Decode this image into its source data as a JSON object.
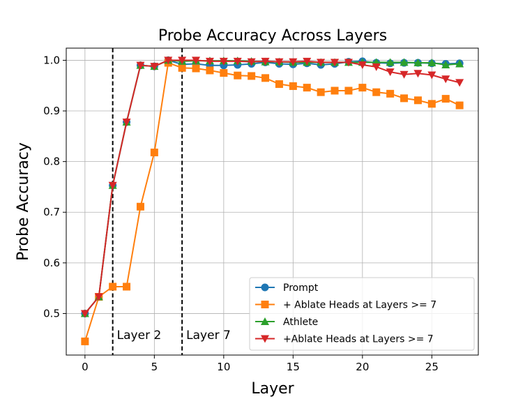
{
  "chart_data": {
    "type": "line",
    "title": "Probe Accuracy Across Layers",
    "xlabel": "Layer",
    "ylabel": "Probe Accuracy",
    "xlim": [
      -1.35,
      28.35
    ],
    "ylim": [
      0.418,
      1.024
    ],
    "xticks": [
      0,
      5,
      10,
      15,
      20,
      25
    ],
    "yticks": [
      0.5,
      0.6,
      0.7,
      0.8,
      0.9,
      1.0
    ],
    "ytick_labels": [
      "0.5",
      "0.6",
      "0.7",
      "0.8",
      "0.9",
      "1.0"
    ],
    "grid": true,
    "legend_position": "lower-right",
    "vlines": [
      {
        "x": 2,
        "label": "Layer 2"
      },
      {
        "x": 7,
        "label": "Layer 7"
      }
    ],
    "x": [
      0,
      1,
      2,
      3,
      4,
      5,
      6,
      7,
      8,
      9,
      10,
      11,
      12,
      13,
      14,
      15,
      16,
      17,
      18,
      19,
      20,
      21,
      22,
      23,
      24,
      25,
      26,
      27
    ],
    "series": [
      {
        "name": "Prompt",
        "color": "#1f77b4",
        "marker": "circle",
        "values": [
          0.5,
          0.533,
          0.753,
          0.878,
          0.99,
          0.988,
          1.0,
          0.992,
          0.993,
          0.99,
          0.99,
          0.991,
          0.993,
          0.996,
          0.993,
          0.992,
          0.994,
          0.991,
          0.993,
          0.997,
          0.998,
          0.995,
          0.994,
          0.995,
          0.995,
          0.994,
          0.993,
          0.994
        ]
      },
      {
        "name": "+ Ablate Heads at Layers >= 7",
        "color": "#ff7f0e",
        "marker": "square",
        "values": [
          0.445,
          0.533,
          0.553,
          0.553,
          0.711,
          0.818,
          0.995,
          0.985,
          0.984,
          0.98,
          0.975,
          0.97,
          0.969,
          0.965,
          0.953,
          0.949,
          0.946,
          0.937,
          0.94,
          0.94,
          0.946,
          0.937,
          0.934,
          0.925,
          0.921,
          0.914,
          0.924,
          0.911
        ]
      },
      {
        "name": "Athlete",
        "color": "#2ca02c",
        "marker": "triangle-up",
        "values": [
          0.5,
          0.533,
          0.753,
          0.878,
          0.99,
          0.988,
          1.0,
          0.998,
          0.999,
          0.999,
          0.999,
          0.999,
          0.998,
          0.997,
          0.997,
          0.996,
          0.996,
          0.996,
          0.996,
          0.996,
          0.996,
          0.996,
          0.996,
          0.996,
          0.995,
          0.995,
          0.991,
          0.993
        ]
      },
      {
        "name": "+Ablate Heads at Layers >= 7",
        "color": "#d62728",
        "marker": "triangle-down",
        "values": [
          0.5,
          0.533,
          0.753,
          0.878,
          0.99,
          0.988,
          1.0,
          1.0,
          1.0,
          0.998,
          0.998,
          0.998,
          0.997,
          0.998,
          0.997,
          0.997,
          0.998,
          0.996,
          0.996,
          0.996,
          0.991,
          0.987,
          0.977,
          0.972,
          0.974,
          0.971,
          0.963,
          0.956
        ]
      }
    ]
  }
}
